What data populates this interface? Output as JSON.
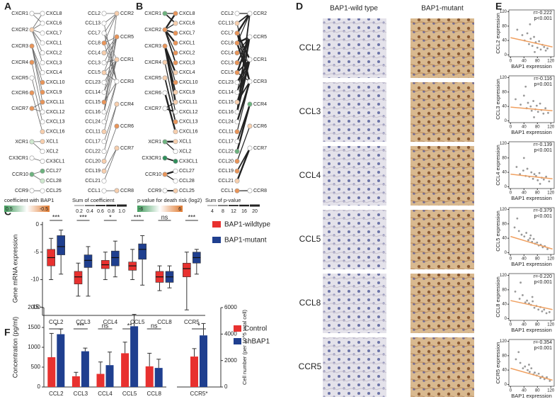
{
  "panel_labels": {
    "a": "A",
    "b": "B",
    "c": "C",
    "d": "D",
    "e": "E",
    "f": "F"
  },
  "network_a": {
    "columns": [
      {
        "labels": [
          "CXCR1",
          "CXCR2",
          "CXCR3",
          "CXCR4",
          "CXCR5",
          "CXCR6",
          "CXCR7",
          "XCR1",
          "CX3CR1",
          "CCR10",
          "CCR9"
        ],
        "colors": [
          "#ffffff",
          "#f7cfae",
          "#e9955a",
          "#e9955a",
          "#ffffff",
          "#e9955a",
          "#e9955a",
          "#cfe8cf",
          "#ffffff",
          "#6db37f",
          "#ffffff"
        ]
      },
      {
        "labels": [
          "CXCL8",
          "CXCL6",
          "CXCL7",
          "CXCL1",
          "CXCL2",
          "CXCL3",
          "CXCL4",
          "CXCL10",
          "CXCL9",
          "CXCL11",
          "CXCL12",
          "CXCL13",
          "CXCL16",
          "XCL1",
          "XCL2",
          "CX3CL1",
          "CCL27",
          "CCL28",
          "CCL25"
        ],
        "colors": [
          "#ffffff",
          "#ffffff",
          "#ffffff",
          "#ffffff",
          "#ffffff",
          "#ffffff",
          "#ffffff",
          "#e9955a",
          "#e9955a",
          "#e9955a",
          "#ffffff",
          "#ffffff",
          "#f7cfae",
          "#f7cfae",
          "#ffffff",
          "#ffffff",
          "#6db37f",
          "#cfe8cf",
          "#ffffff"
        ]
      },
      {
        "labels": [
          "CCL2",
          "CCL13",
          "CCL7",
          "CCL8",
          "CCL4",
          "CCL3",
          "CCL5",
          "CCL23",
          "CCL14",
          "CCL15",
          "CCL16",
          "CCL24",
          "CCL11",
          "CCL17",
          "CCL22",
          "CCL20",
          "CCL19",
          "CCL21",
          "CCL1"
        ],
        "colors": [
          "#ffffff",
          "#ffffff",
          "#ffffff",
          "#e9955a",
          "#f7cfae",
          "#ffffff",
          "#f7cfae",
          "#ffffff",
          "#ffffff",
          "#e9955a",
          "#ffffff",
          "#ffffff",
          "#f7cfae",
          "#ffffff",
          "#ffffff",
          "#f7cfae",
          "#f7cfae",
          "#ffffff",
          "#ffffff"
        ]
      },
      {
        "labels": [
          "CCR2",
          "CCR5",
          "CCR1",
          "CCR3",
          "CCR4",
          "CCR6",
          "CCR7",
          "CCR8"
        ],
        "colors": [
          "#f7cfae",
          "#e9955a",
          "#f7cfae",
          "#ffffff",
          "#f7cfae",
          "#e9955a",
          "#f7cfae",
          "#f7cfae"
        ]
      }
    ],
    "color_legend": {
      "title": "coefficient with BAP1",
      "labels": [
        0.5,
        -0.5
      ],
      "colors": [
        "#3f9a5a",
        "#e07a30"
      ]
    },
    "width_legend": {
      "title": "Sum of coefficient",
      "ticks": [
        0.2,
        0.4,
        0.6,
        0.8,
        {
          "value": 1,
          "label": "1.0"
        }
      ]
    }
  },
  "network_b": {
    "columns": [
      {
        "labels": [
          "CXCR1",
          "CXCR2",
          "CXCR3",
          "CXCR4",
          "CXCR5",
          "CXCR6",
          "CXCR7",
          "XCR1",
          "CX3CR1",
          "CCR10",
          "CCR9"
        ],
        "colors": [
          "#6db37f",
          "#e9955a",
          "#e9955a",
          "#f7cfae",
          "#f7cfae",
          "#ffffff",
          "#ffffff",
          "#6db37f",
          "#2f8f5b",
          "#e9955a",
          "#ffffff"
        ]
      },
      {
        "labels": [
          "CXCL8",
          "CXCL6",
          "CXCL7",
          "CXCL1",
          "CXCL2",
          "CXCL3",
          "CXCL4",
          "CXCL10",
          "CXCL9",
          "CXCL11",
          "CXCL12",
          "CXCL13",
          "CXCL16",
          "XCL1",
          "XCL2",
          "CX3CL1",
          "CCL27",
          "CCL28",
          "CCL25"
        ],
        "colors": [
          "#e9955a",
          "#f7cfae",
          "#e9955a",
          "#e9955a",
          "#e9955a",
          "#e9955a",
          "#f7cfae",
          "#e9955a",
          "#f7cfae",
          "#f7cfae",
          "#ffffff",
          "#e9955a",
          "#f7cfae",
          "#f7cfae",
          "#ffffff",
          "#2f8f5b",
          "#ffffff",
          "#ffffff",
          "#f7cfae"
        ]
      },
      {
        "labels": [
          "CCL2",
          "CCL13",
          "CCL7",
          "CCL8",
          "CCL4",
          "CCL3",
          "CCL5",
          "CCL23",
          "CCL14",
          "CCL15",
          "CCL16",
          "CCL24",
          "CCL11",
          "CCL17",
          "CCL22",
          "CCL20",
          "CCL19",
          "CCL21",
          "CCL1"
        ],
        "colors": [
          "#ffffff",
          "#f7cfae",
          "#e9955a",
          "#e9955a",
          "#e9955a",
          "#e9955a",
          "#e9955a",
          "#ffffff",
          "#ffffff",
          "#f7cfae",
          "#ffffff",
          "#ffffff",
          "#e9955a",
          "#ffffff",
          "#6db37f",
          "#e9955a",
          "#e9955a",
          "#f7cfae",
          "#e9955a"
        ]
      },
      {
        "labels": [
          "CCR2",
          "CCR5",
          "CCR1",
          "CCR3",
          "CCR4",
          "CCR6",
          "CCR7",
          "CCR8"
        ],
        "colors": [
          "#ffffff",
          "#ffffff",
          "#ffffff",
          "#ffffff",
          "#6db37f",
          "#f7cfae",
          "#ffffff",
          "#ffffff"
        ]
      }
    ],
    "color_legend": {
      "title": "p-value for death risk (log2)",
      "labels": [
        -6,
        6
      ],
      "colors": [
        "#3f9a5a",
        "#e07a30"
      ]
    },
    "width_legend": {
      "title": "Sum of p-value",
      "ticks": [
        4,
        8,
        12,
        16,
        20
      ]
    }
  },
  "images": {
    "columns": [
      "BAP1-wild type",
      "BAP1-mutant"
    ],
    "rows": [
      "CCL2",
      "CCL3",
      "CCL4",
      "CCL5",
      "CCL8",
      "CCR5"
    ]
  },
  "chart_data": [
    {
      "type": "box",
      "ylabel": "Gene mRNA expression",
      "categories": [
        "CCL2",
        "CCL3",
        "CCL4",
        "CCL5",
        "CCL8",
        "CCR5"
      ],
      "ylim": [
        -16.5,
        0.5
      ],
      "yticks": [
        -15,
        -10,
        -5,
        0
      ],
      "series": [
        {
          "name": "BAP1-wildtype",
          "color": "#e8312f",
          "values": [
            {
              "min": -10,
              "q1": -7.5,
              "median": -6,
              "q3": -4.5,
              "max": -2.5
            },
            {
              "min": -13,
              "q1": -10.8,
              "median": -9.5,
              "q3": -8.5,
              "max": -7
            },
            {
              "min": -10,
              "q1": -8,
              "median": -7.3,
              "q3": -6.5,
              "max": -5
            },
            {
              "min": -10,
              "q1": -8.3,
              "median": -7.5,
              "q3": -6.8,
              "max": -4.5
            },
            {
              "min": -12,
              "q1": -10.5,
              "median": -9.5,
              "q3": -8.5,
              "max": -7.5
            },
            {
              "min": -15.5,
              "q1": -9.5,
              "median": -8,
              "q3": -7,
              "max": -5
            }
          ]
        },
        {
          "name": "BAP1-mutant",
          "color": "#1f3f8f",
          "values": [
            {
              "min": -9,
              "q1": -5.5,
              "median": -4,
              "q3": -2,
              "max": -1
            },
            {
              "min": -13,
              "q1": -7.8,
              "median": -6.5,
              "q3": -5.5,
              "max": -4
            },
            {
              "min": -9.5,
              "q1": -7.5,
              "median": -6,
              "q3": -4.8,
              "max": -3
            },
            {
              "min": -11,
              "q1": -6.3,
              "median": -4.5,
              "q3": -3.5,
              "max": -2
            },
            {
              "min": -11.5,
              "q1": -10.5,
              "median": -9.5,
              "q3": -8.5,
              "max": -7.5
            },
            {
              "min": -9,
              "q1": -7,
              "median": -6,
              "q3": -5,
              "max": -4.5
            }
          ]
        }
      ],
      "annotations": [
        "***",
        "***",
        "*",
        "***",
        "ns",
        "***"
      ]
    },
    {
      "type": "bar",
      "ylabel": "Concentration (pg/ml)",
      "y2label": "Cell number (per 10^5 total cell)",
      "categories": [
        "CCL2",
        "CCL3",
        "CCL4",
        "CCL5",
        "CCL8",
        "CCR5*"
      ],
      "category_axes": [
        "y",
        "y",
        "y",
        "y",
        "y",
        "y2"
      ],
      "ylim": [
        0,
        2000
      ],
      "yticks": [
        0,
        500,
        1000,
        1500,
        2000
      ],
      "y2lim": [
        0,
        6000
      ],
      "y2ticks": [
        0,
        2000,
        4000,
        6000
      ],
      "series": [
        {
          "name": "Control",
          "color": "#e8312f",
          "values": [
            750,
            270,
            330,
            850,
            520,
            2300
          ],
          "errors": [
            600,
            100,
            300,
            280,
            330,
            600
          ]
        },
        {
          "name": "shBAP1",
          "color": "#1f3f8f",
          "values": [
            1330,
            900,
            550,
            1530,
            480,
            3900
          ],
          "errors": [
            130,
            80,
            330,
            300,
            220,
            900
          ]
        }
      ],
      "annotations": [
        "*",
        "***",
        "ns",
        "**",
        "ns",
        "*"
      ]
    },
    {
      "type": "scatter",
      "stats": [
        "r=-0.222",
        "p<0.001"
      ],
      "xlabel": "BAP1 expression",
      "ylabel": "CCL2 expression",
      "xlim": [
        -5,
        130
      ],
      "ylim": [
        -5,
        125
      ],
      "xticks": [
        0,
        40,
        80,
        120
      ],
      "yticks": [
        0,
        40,
        80,
        120
      ],
      "color": "#808080",
      "x": [
        20,
        35,
        42,
        50,
        55,
        60,
        65,
        70,
        75,
        80,
        85,
        90,
        95,
        100,
        105,
        110,
        58,
        72
      ],
      "y": [
        70,
        55,
        40,
        60,
        30,
        45,
        25,
        50,
        35,
        20,
        38,
        15,
        28,
        22,
        12,
        18,
        85,
        8
      ],
      "fit": {
        "x": [
          0,
          125
        ],
        "y": [
          48,
          22
        ],
        "color": "#f0a060"
      }
    },
    {
      "type": "scatter",
      "stats": [
        "r=-0.116",
        "p=0.001"
      ],
      "xlabel": "BAP1 expression",
      "ylabel": "CCL3 expression",
      "xlim": [
        -5,
        130
      ],
      "ylim": [
        -5,
        125
      ],
      "xticks": [
        0,
        40,
        80,
        120
      ],
      "yticks": [
        0,
        40,
        80,
        120
      ],
      "color": "#808080",
      "x": [
        15,
        30,
        40,
        48,
        52,
        60,
        63,
        68,
        74,
        78,
        82,
        88,
        92,
        98,
        104,
        112,
        45,
        70
      ],
      "y": [
        60,
        45,
        70,
        35,
        50,
        40,
        28,
        55,
        32,
        42,
        25,
        48,
        30,
        20,
        35,
        22,
        95,
        10
      ],
      "fit": {
        "x": [
          0,
          125
        ],
        "y": [
          38,
          28
        ],
        "color": "#f0a060"
      }
    },
    {
      "type": "scatter",
      "stats": [
        "r=-0.139",
        "p<0.001"
      ],
      "xlabel": "BAP1 expression",
      "ylabel": "CCL4 expression",
      "xlim": [
        -5,
        130
      ],
      "ylim": [
        -5,
        125
      ],
      "xticks": [
        0,
        40,
        80,
        120
      ],
      "yticks": [
        0,
        40,
        80,
        120
      ],
      "color": "#808080",
      "x": [
        18,
        28,
        38,
        45,
        50,
        56,
        62,
        67,
        71,
        76,
        81,
        86,
        93,
        99,
        106,
        115,
        40,
        88
      ],
      "y": [
        55,
        35,
        45,
        30,
        50,
        28,
        40,
        22,
        35,
        30,
        18,
        38,
        25,
        20,
        28,
        15,
        80,
        8
      ],
      "fit": {
        "x": [
          0,
          125
        ],
        "y": [
          35,
          22
        ],
        "color": "#f0a060"
      }
    },
    {
      "type": "scatter",
      "stats": [
        "r=-0.379",
        "p<0.001"
      ],
      "xlabel": "BAP1 expression",
      "ylabel": "CCL5 expression",
      "xlim": [
        -5,
        130
      ],
      "ylim": [
        -5,
        125
      ],
      "xticks": [
        0,
        40,
        80,
        120
      ],
      "yticks": [
        0,
        40,
        80,
        120
      ],
      "color": "#808080",
      "x": [
        12,
        25,
        33,
        41,
        47,
        53,
        58,
        64,
        69,
        73,
        79,
        84,
        90,
        96,
        102,
        110,
        20,
        60
      ],
      "y": [
        70,
        60,
        50,
        45,
        55,
        35,
        40,
        30,
        38,
        25,
        28,
        20,
        22,
        15,
        18,
        10,
        95,
        48
      ],
      "fit": {
        "x": [
          0,
          125
        ],
        "y": [
          45,
          10
        ],
        "color": "#f0a060"
      }
    },
    {
      "type": "scatter",
      "stats": [
        "r=-0.220",
        "p<0.001"
      ],
      "xlabel": "BAP1 expression",
      "ylabel": "CCL8 expression",
      "xlim": [
        -5,
        130
      ],
      "ylim": [
        -5,
        125
      ],
      "xticks": [
        0,
        40,
        80,
        120
      ],
      "yticks": [
        0,
        40,
        80,
        120
      ],
      "color": "#808080",
      "x": [
        14,
        27,
        36,
        44,
        49,
        55,
        61,
        66,
        71,
        77,
        83,
        89,
        94,
        100,
        107,
        116,
        30,
        65
      ],
      "y": [
        75,
        55,
        65,
        45,
        50,
        42,
        38,
        48,
        30,
        35,
        25,
        32,
        20,
        25,
        15,
        18,
        100,
        60
      ],
      "fit": {
        "x": [
          0,
          125
        ],
        "y": [
          50,
          25
        ],
        "color": "#f0a060"
      }
    },
    {
      "type": "scatter",
      "stats": [
        "r=-0.354",
        "p<0.001"
      ],
      "xlabel": "BAP1 expression",
      "ylabel": "CCR5 expression",
      "xlim": [
        -5,
        130
      ],
      "ylim": [
        -5,
        125
      ],
      "xticks": [
        0,
        40,
        80,
        120
      ],
      "yticks": [
        0,
        40,
        80,
        120
      ],
      "color": "#808080",
      "x": [
        16,
        29,
        37,
        43,
        51,
        57,
        62,
        68,
        72,
        78,
        84,
        89,
        95,
        101,
        108,
        117,
        24,
        55
      ],
      "y": [
        70,
        60,
        45,
        50,
        40,
        35,
        45,
        28,
        33,
        25,
        30,
        18,
        22,
        15,
        20,
        10,
        90,
        55
      ],
      "fit": {
        "x": [
          0,
          125
        ],
        "y": [
          45,
          12
        ],
        "color": "#f0a060"
      }
    }
  ]
}
